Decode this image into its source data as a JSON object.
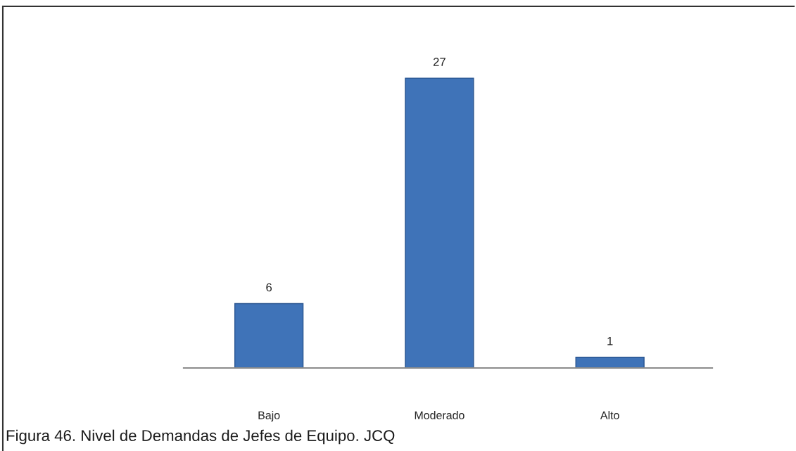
{
  "chart_data": {
    "type": "bar",
    "categories": [
      "Bajo",
      "Moderado",
      "Alto"
    ],
    "values": [
      6,
      27,
      1
    ],
    "color": "#3f73b8",
    "data_labels": true,
    "grid": false,
    "legend": false,
    "annotations": [
      "Figura 46. Nivel de Demandas de Jefes de Equipo. JCQ"
    ]
  }
}
